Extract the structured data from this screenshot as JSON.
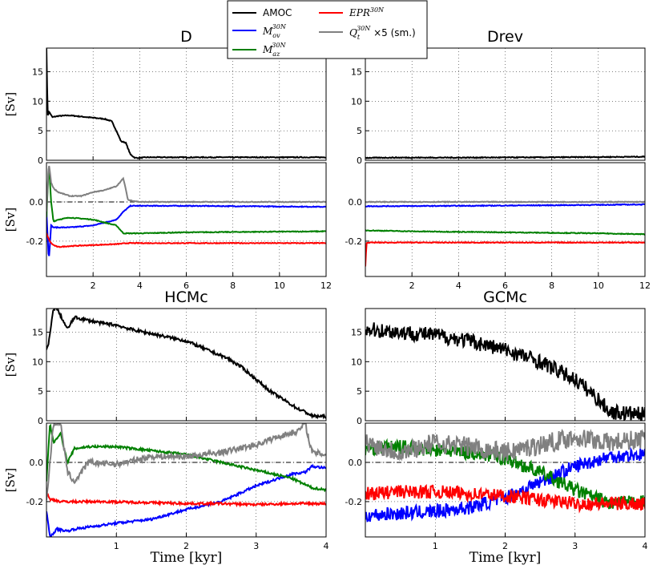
{
  "legend": {
    "amoc": "AMOC",
    "epr_main": "EPR",
    "epr_sup": "30N",
    "mov_main": "M",
    "mov_sub": "ov",
    "mov_sup": "30N",
    "maz_main": "M",
    "maz_sub": "az",
    "maz_sup": "30N",
    "qt_main": "Q",
    "qt_sub": "t",
    "qt_sup": "30N",
    "qt_tail": " ×5 (sm.)"
  },
  "xlabel": "Time [kyr]",
  "ylabel": "[Sv]",
  "colors": {
    "amoc": "#000000",
    "mov": "#0000ff",
    "maz": "#008000",
    "epr": "#ff0000",
    "qt": "#808080"
  },
  "chart_data": [
    {
      "type": "line",
      "title": "D",
      "xlim": [
        0,
        12
      ],
      "top": {
        "ylim": [
          0,
          19
        ],
        "yticks": [
          "0",
          "5",
          "10",
          "15"
        ],
        "series": [
          {
            "name": "AMOC",
            "x": [
              0,
              0.05,
              0.12,
              0.25,
              0.5,
              1,
              1.5,
              2,
              2.5,
              2.8,
              3.0,
              3.2,
              3.4,
              3.6,
              3.8,
              4.0,
              4.3,
              5,
              8,
              12
            ],
            "y": [
              19,
              7.6,
              8.2,
              7.3,
              7.5,
              7.6,
              7.4,
              7.2,
              7.0,
              6.6,
              5.0,
              3.2,
              3.0,
              1.0,
              0.4,
              0.4,
              0.5,
              0.5,
              0.5,
              0.5
            ]
          }
        ]
      },
      "bottom": {
        "ylim": [
          -0.38,
          0.2
        ],
        "yticks": [
          "-0.2",
          "0.0"
        ],
        "series": [
          {
            "name": "Mov",
            "x": [
              0,
              0.1,
              0.2,
              0.3,
              0.5,
              1,
              2,
              3,
              3.3,
              3.6,
              4,
              6,
              12
            ],
            "y": [
              -0.05,
              -0.3,
              -0.12,
              -0.13,
              -0.13,
              -0.13,
              -0.12,
              -0.09,
              -0.05,
              -0.02,
              -0.02,
              -0.02,
              -0.025
            ]
          },
          {
            "name": "Maz",
            "x": [
              0,
              0.1,
              0.2,
              0.3,
              0.5,
              1,
              2,
              3,
              3.3,
              3.5,
              4,
              6,
              12
            ],
            "y": [
              -0.08,
              0.2,
              0.0,
              -0.1,
              -0.09,
              -0.08,
              -0.09,
              -0.12,
              -0.16,
              -0.16,
              -0.16,
              -0.155,
              -0.15
            ]
          },
          {
            "name": "EPR",
            "x": [
              0,
              0.1,
              0.2,
              0.3,
              0.5,
              1,
              2,
              3,
              3.5,
              4,
              12
            ],
            "y": [
              -0.16,
              -0.19,
              -0.21,
              -0.22,
              -0.23,
              -0.225,
              -0.22,
              -0.215,
              -0.21,
              -0.21,
              -0.21
            ]
          },
          {
            "name": "Qt",
            "x": [
              0,
              0.1,
              0.2,
              0.3,
              0.5,
              1,
              1.5,
              2,
              2.5,
              3,
              3.3,
              3.5,
              4,
              12
            ],
            "y": [
              -0.05,
              0.2,
              0.1,
              0.07,
              0.05,
              0.03,
              0.03,
              0.05,
              0.06,
              0.08,
              0.12,
              0.01,
              0.0,
              0.0
            ]
          }
        ]
      },
      "xticks": [
        "2",
        "4",
        "6",
        "8",
        "10",
        "12"
      ]
    },
    {
      "type": "line",
      "title": "Drev",
      "xlim": [
        0,
        12
      ],
      "top": {
        "ylim": [
          0,
          19
        ],
        "yticks": [
          "0",
          "5",
          "10",
          "15"
        ],
        "series": [
          {
            "name": "AMOC",
            "x": [
              0,
              1,
              4,
              8,
              12
            ],
            "y": [
              0.4,
              0.45,
              0.45,
              0.5,
              0.6
            ]
          }
        ]
      },
      "bottom": {
        "ylim": [
          -0.38,
          0.2
        ],
        "yticks": [
          "-0.2",
          "0.0"
        ],
        "series": [
          {
            "name": "Mov",
            "x": [
              0,
              4,
              8,
              12
            ],
            "y": [
              -0.022,
              -0.02,
              -0.017,
              -0.013
            ]
          },
          {
            "name": "Maz",
            "x": [
              0,
              2,
              6,
              10,
              12
            ],
            "y": [
              -0.145,
              -0.15,
              -0.155,
              -0.16,
              -0.165
            ]
          },
          {
            "name": "EPR",
            "x": [
              0,
              0.05,
              0.1,
              2,
              6,
              12
            ],
            "y": [
              -0.33,
              -0.21,
              -0.207,
              -0.207,
              -0.207,
              -0.207
            ]
          },
          {
            "name": "Qt",
            "x": [
              0,
              4,
              8,
              12
            ],
            "y": [
              0.0,
              0.0,
              0.0,
              0.0
            ]
          }
        ]
      },
      "xticks": [
        "2",
        "4",
        "6",
        "8",
        "10",
        "12"
      ]
    },
    {
      "type": "line",
      "title": "HCMc",
      "xlim": [
        0,
        4
      ],
      "xlabel": "Time [kyr]",
      "top": {
        "ylim": [
          0,
          19
        ],
        "yticks": [
          "0",
          "5",
          "10",
          "15"
        ],
        "series": [
          {
            "name": "AMOC",
            "x": [
              0,
              0.03,
              0.1,
              0.15,
              0.3,
              0.4,
              0.6,
              0.8,
              1.0,
              1.2,
              1.4,
              1.6,
              1.8,
              2.0,
              2.2,
              2.4,
              2.6,
              2.8,
              3.0,
              3.2,
              3.4,
              3.6,
              3.7,
              3.8,
              4.0
            ],
            "y": [
              12,
              13,
              19,
              19,
              15.5,
              17.5,
              17,
              16.5,
              16.2,
              15.5,
              15,
              14.5,
              14,
              13.5,
              12.5,
              11.5,
              10.5,
              9,
              7,
              5,
              3.5,
              2,
              1.5,
              0.8,
              0.7
            ]
          }
        ]
      },
      "bottom": {
        "ylim": [
          -0.38,
          0.2
        ],
        "yticks": [
          "-0.2",
          "0.0"
        ],
        "series": [
          {
            "name": "Mov",
            "x": [
              0,
              0.05,
              0.15,
              0.3,
              0.4,
              0.6,
              1.0,
              1.5,
              2.0,
              2.5,
              3.0,
              3.5,
              3.7,
              3.8,
              4.0
            ],
            "y": [
              -0.25,
              -0.38,
              -0.34,
              -0.35,
              -0.34,
              -0.33,
              -0.31,
              -0.29,
              -0.24,
              -0.2,
              -0.12,
              -0.06,
              -0.05,
              -0.02,
              -0.03
            ]
          },
          {
            "name": "Maz",
            "x": [
              0,
              0.05,
              0.1,
              0.2,
              0.3,
              0.4,
              0.6,
              1.0,
              1.5,
              2.0,
              2.5,
              3.0,
              3.5,
              3.8,
              4.0
            ],
            "y": [
              -0.1,
              0.2,
              0.1,
              0.15,
              0.0,
              0.07,
              0.08,
              0.08,
              0.06,
              0.04,
              0.0,
              -0.04,
              -0.08,
              -0.13,
              -0.14
            ]
          },
          {
            "name": "EPR",
            "x": [
              0,
              0.05,
              0.1,
              0.2,
              0.4,
              0.8,
              1.5,
              2.0,
              2.5,
              3.0,
              3.5,
              4.0
            ],
            "y": [
              -0.15,
              -0.19,
              -0.19,
              -0.2,
              -0.2,
              -0.2,
              -0.205,
              -0.21,
              -0.21,
              -0.215,
              -0.21,
              -0.21
            ]
          },
          {
            "name": "Qt",
            "x": [
              0,
              0.1,
              0.2,
              0.3,
              0.4,
              0.6,
              1.0,
              1.5,
              2.0,
              2.5,
              3.0,
              3.3,
              3.6,
              3.7,
              3.8,
              4.0
            ],
            "y": [
              -0.2,
              0.2,
              0.2,
              -0.05,
              -0.1,
              0.0,
              -0.01,
              0.03,
              0.03,
              0.05,
              0.09,
              0.13,
              0.16,
              0.2,
              0.05,
              0.04
            ]
          }
        ]
      },
      "xticks": [
        "1",
        "2",
        "3",
        "4"
      ]
    },
    {
      "type": "line",
      "title": "GCMc",
      "xlim": [
        0,
        4
      ],
      "xlabel": "Time [kyr]",
      "top": {
        "ylim": [
          0,
          19
        ],
        "yticks": [
          "0",
          "5",
          "10",
          "15"
        ],
        "series": [
          {
            "name": "AMOC",
            "x": [
              0,
              0.5,
              1.0,
              1.5,
              2.0,
              2.5,
              3.0,
              3.3,
              3.5,
              3.8,
              4.0
            ],
            "y": [
              15.5,
              15,
              14.5,
              13.5,
              12,
              10,
              7,
              4,
              1.5,
              1.2,
              1.0
            ]
          }
        ]
      },
      "bottom": {
        "ylim": [
          -0.38,
          0.2
        ],
        "yticks": [
          "-0.2",
          "0.0"
        ],
        "series": [
          {
            "name": "Mov",
            "x": [
              0,
              0.5,
              1.0,
              1.5,
              2.0,
              2.5,
              3.0,
              3.5,
              4.0
            ],
            "y": [
              -0.27,
              -0.26,
              -0.25,
              -0.23,
              -0.18,
              -0.1,
              -0.02,
              0.03,
              0.04
            ]
          },
          {
            "name": "Maz",
            "x": [
              0,
              0.5,
              1.0,
              1.5,
              2.0,
              2.5,
              3.0,
              3.5,
              4.0
            ],
            "y": [
              0.07,
              0.08,
              0.06,
              0.05,
              0.02,
              -0.05,
              -0.14,
              -0.21,
              -0.2
            ]
          },
          {
            "name": "EPR",
            "x": [
              0,
              0.5,
              1.0,
              1.5,
              2.0,
              2.5,
              3.0,
              3.5,
              4.0
            ],
            "y": [
              -0.16,
              -0.15,
              -0.15,
              -0.16,
              -0.17,
              -0.19,
              -0.21,
              -0.21,
              -0.21
            ]
          },
          {
            "name": "Qt",
            "x": [
              0,
              0.5,
              1.0,
              1.5,
              2.0,
              2.5,
              3.0,
              3.5,
              4.0
            ],
            "y": [
              0.1,
              0.05,
              0.1,
              0.08,
              0.05,
              0.09,
              0.13,
              0.1,
              0.12
            ]
          }
        ]
      },
      "xticks": [
        "1",
        "2",
        "3",
        "4"
      ]
    }
  ]
}
